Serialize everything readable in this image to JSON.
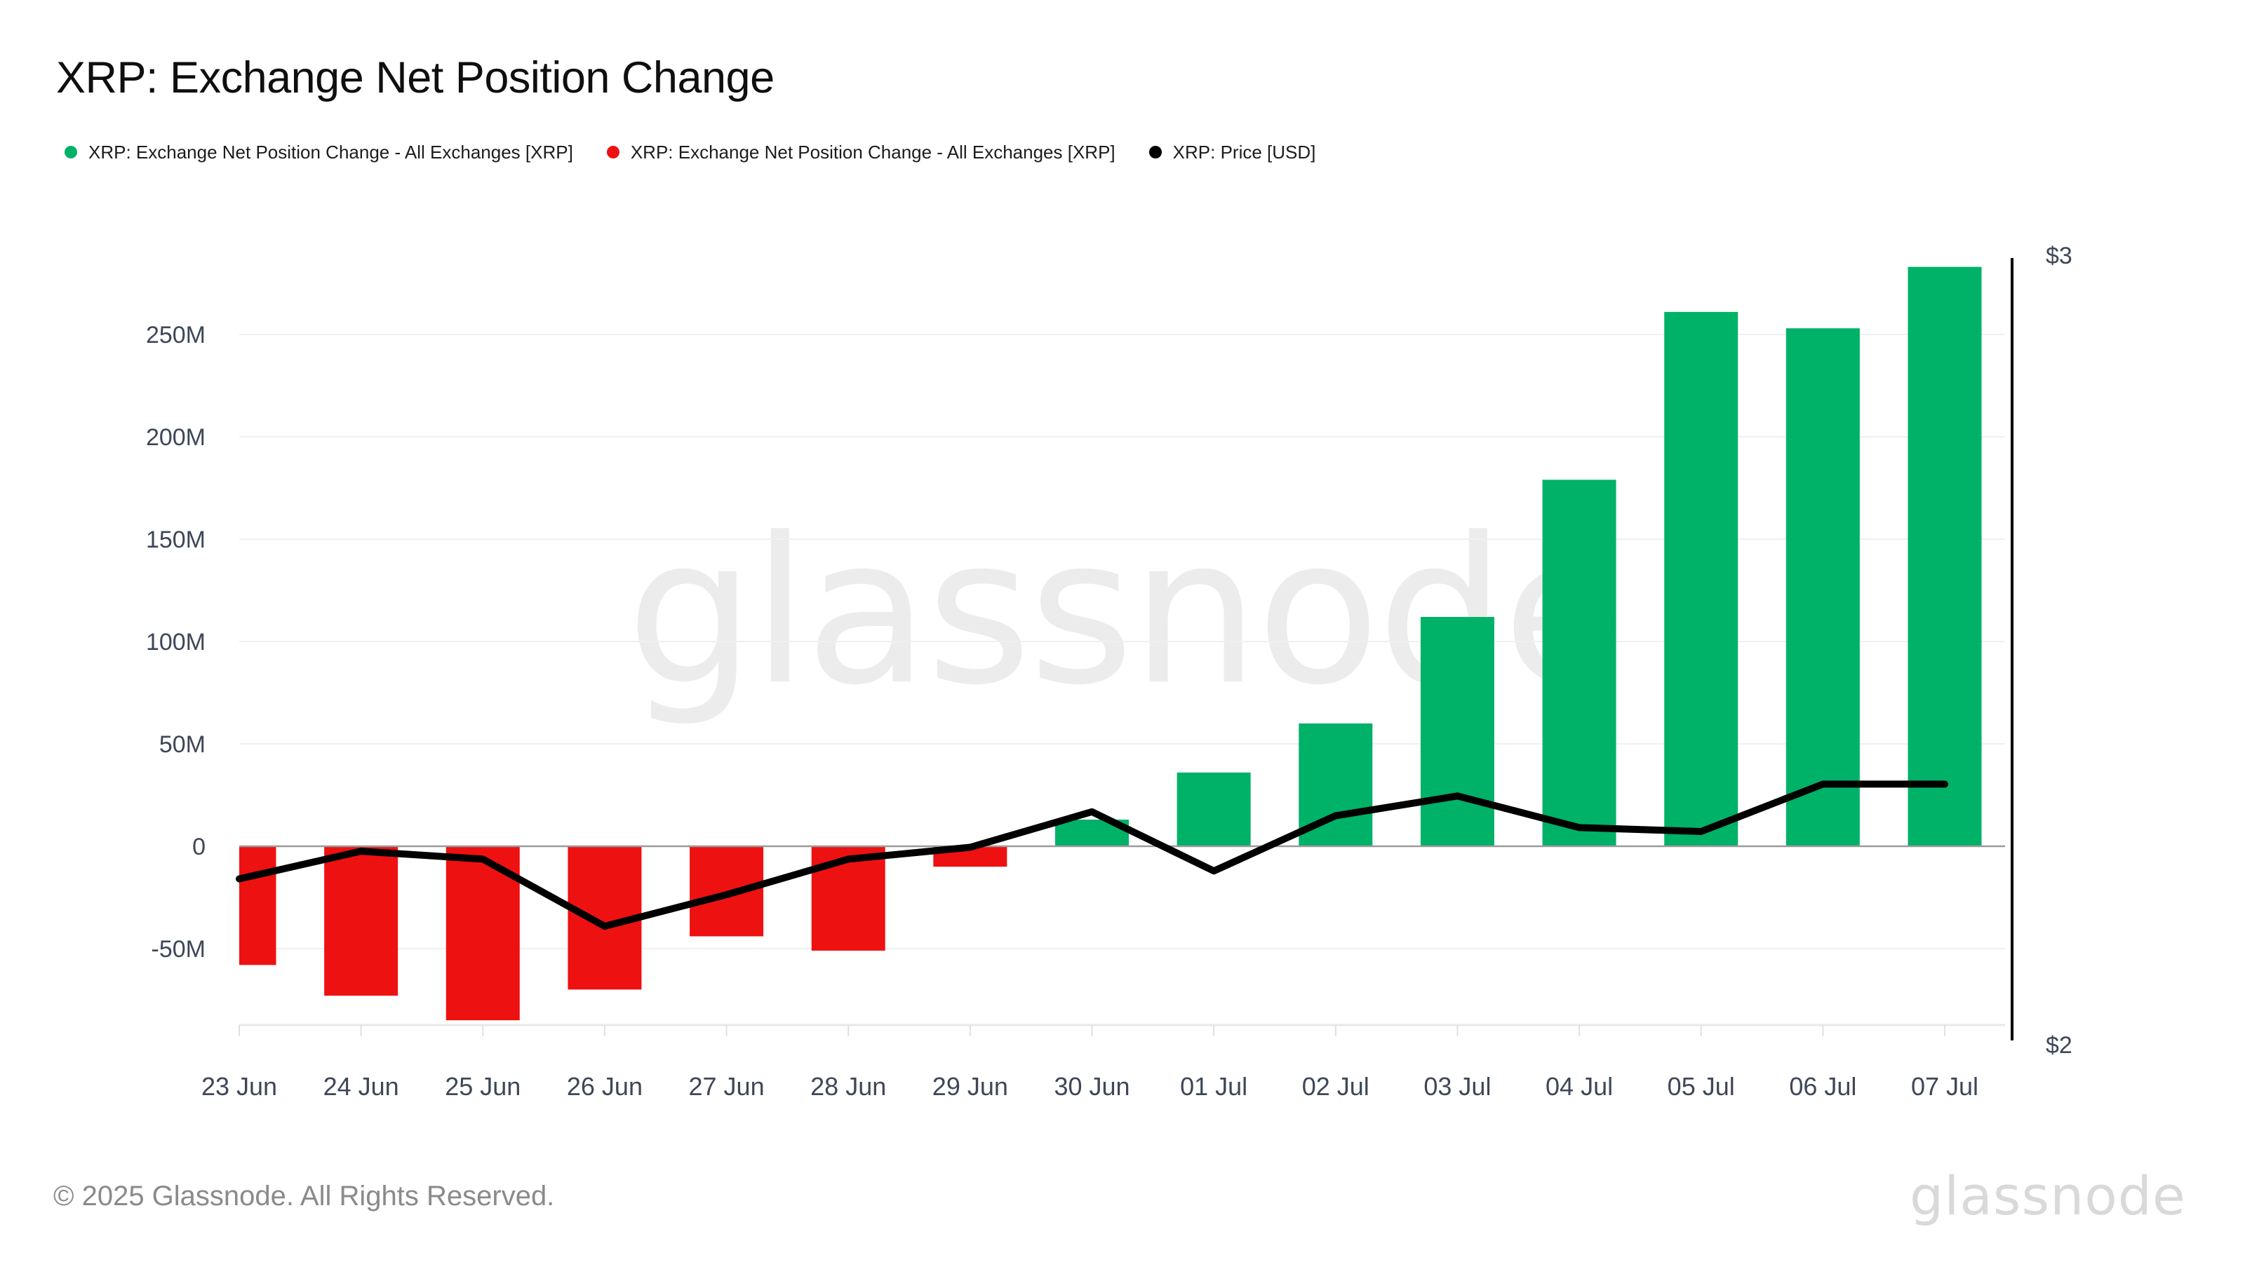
{
  "header": {
    "title": "XRP: Exchange Net Position Change"
  },
  "legend": {
    "items": [
      {
        "label": "XRP: Exchange Net Position Change - All Exchanges [XRP]",
        "color": "#00b267"
      },
      {
        "label": "XRP: Exchange Net Position Change - All Exchanges [XRP]",
        "color": "#ee1111"
      },
      {
        "label": "XRP: Price [USD]",
        "color": "#000000"
      }
    ]
  },
  "chart_data": {
    "type": "bar+line",
    "title": "XRP: Exchange Net Position Change",
    "categories": [
      "23 Jun",
      "24 Jun",
      "25 Jun",
      "26 Jun",
      "27 Jun",
      "28 Jun",
      "29 Jun",
      "30 Jun",
      "01 Jul",
      "02 Jul",
      "03 Jul",
      "04 Jul",
      "05 Jul",
      "06 Jul",
      "07 Jul"
    ],
    "series": [
      {
        "name": "XRP: Exchange Net Position Change - All Exchanges [XRP]",
        "type": "bar",
        "unit": "XRP (millions)",
        "values": [
          -58,
          -73,
          -85,
          -70,
          -44,
          -51,
          -10,
          13,
          36,
          60,
          112,
          179,
          261,
          253,
          283
        ],
        "positive_color": "#00b267",
        "negative_color": "#ee1111"
      },
      {
        "name": "XRP: Price [USD]",
        "type": "line",
        "unit": "USD",
        "values": [
          2.21,
          2.245,
          2.235,
          2.15,
          2.19,
          2.235,
          2.25,
          2.295,
          2.22,
          2.29,
          2.315,
          2.275,
          2.27,
          2.33,
          2.33
        ],
        "color": "#000000"
      }
    ],
    "left_axis": {
      "unit": "M",
      "ticks": [
        {
          "label": "250M",
          "value": 250
        },
        {
          "label": "200M",
          "value": 200
        },
        {
          "label": "150M",
          "value": 150
        },
        {
          "label": "100M",
          "value": 100
        },
        {
          "label": "50M",
          "value": 50
        },
        {
          "label": "0",
          "value": 0
        },
        {
          "label": "-50M",
          "value": -50
        }
      ]
    },
    "right_axis": {
      "min": 2,
      "max": 3,
      "ticks": [
        {
          "label": "$3",
          "value": 3
        },
        {
          "label": "$2",
          "value": 2
        }
      ]
    },
    "grid": true,
    "legend_position": "top"
  },
  "watermark": {
    "text": "glassnode"
  },
  "footer": {
    "copyright": "© 2025 Glassnode. All Rights Reserved.",
    "brand": "glassnode"
  },
  "colors": {
    "positive": "#00b267",
    "negative": "#ee1111",
    "price_line": "#000000",
    "gridline": "#f0f0f0",
    "zero_line": "#9b9b9b",
    "axis_line": "#e8e8e8",
    "tick": "#e0e0e0",
    "axis_label": "#3e4757",
    "watermark": "#ececec"
  }
}
